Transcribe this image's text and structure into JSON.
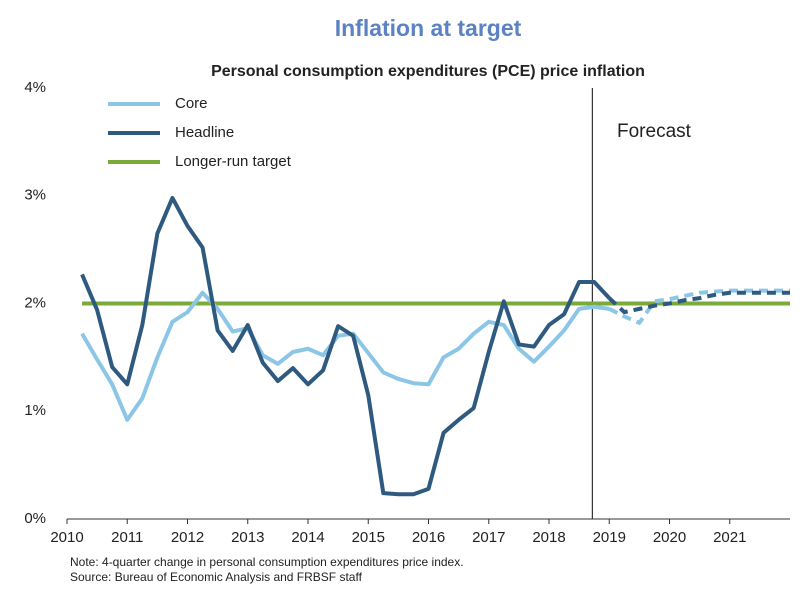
{
  "chart_data": {
    "type": "line",
    "title": "Inflation at target",
    "subtitle": "Personal consumption expenditures (PCE) price inflation",
    "annotation": "Forecast",
    "forecast_x": 2018.72,
    "dashed_from": 2019,
    "notes": [
      "Note: 4-quarter change in personal consumption expenditures price index.",
      "Source: Bureau of Economic Analysis and FRBSF staff"
    ],
    "x": [
      2010.25,
      2010.5,
      2010.75,
      2011,
      2011.25,
      2011.5,
      2011.75,
      2012,
      2012.25,
      2012.5,
      2012.75,
      2013,
      2013.25,
      2013.5,
      2013.75,
      2014,
      2014.25,
      2014.5,
      2014.75,
      2015,
      2015.25,
      2015.5,
      2015.75,
      2016,
      2016.25,
      2016.5,
      2016.75,
      2017,
      2017.25,
      2017.5,
      2017.75,
      2018,
      2018.25,
      2018.5,
      2018.75,
      2019,
      2019.25,
      2019.5,
      2019.75,
      2020,
      2020.25,
      2020.5,
      2020.75,
      2021,
      2021.25,
      2021.5,
      2021.75,
      2022
    ],
    "xlim": [
      2010,
      2022
    ],
    "xticks": [
      2010,
      2011,
      2012,
      2013,
      2014,
      2015,
      2016,
      2017,
      2018,
      2019,
      2020,
      2021
    ],
    "ylim": [
      0,
      4
    ],
    "yticks": [
      {
        "value": 0,
        "label": "0%"
      },
      {
        "value": 1,
        "label": "1%"
      },
      {
        "value": 2,
        "label": "2%"
      },
      {
        "value": 3,
        "label": "3%"
      },
      {
        "value": 4,
        "label": "4%"
      }
    ],
    "series": [
      {
        "name": "Core",
        "color": "#8cc6e6",
        "values": [
          1.72,
          1.48,
          1.25,
          0.92,
          1.12,
          1.5,
          1.83,
          1.92,
          2.1,
          1.95,
          1.74,
          1.77,
          1.52,
          1.44,
          1.55,
          1.58,
          1.52,
          1.7,
          1.72,
          1.54,
          1.36,
          1.3,
          1.26,
          1.25,
          1.5,
          1.58,
          1.72,
          1.83,
          1.8,
          1.58,
          1.46,
          1.6,
          1.75,
          1.95,
          1.97,
          1.95,
          1.88,
          1.82,
          2.02,
          2.04,
          2.07,
          2.1,
          2.11,
          2.12,
          2.12,
          2.12,
          2.12,
          2.12
        ]
      },
      {
        "name": "Headline",
        "color": "#2f5a80",
        "values": [
          2.27,
          1.94,
          1.41,
          1.25,
          1.8,
          2.65,
          2.98,
          2.72,
          2.52,
          1.75,
          1.56,
          1.8,
          1.45,
          1.28,
          1.4,
          1.25,
          1.38,
          1.79,
          1.7,
          1.15,
          0.24,
          0.23,
          0.23,
          0.28,
          0.8,
          0.92,
          1.03,
          1.55,
          2.02,
          1.62,
          1.6,
          1.8,
          1.9,
          2.2,
          2.2,
          2.05,
          1.92,
          1.95,
          1.98,
          2.0,
          2.03,
          2.05,
          2.08,
          2.1,
          2.1,
          2.1,
          2.1,
          2.1
        ]
      },
      {
        "name": "Longer-run target",
        "color": "#7aab3a",
        "dashed": false,
        "values": [
          2,
          2,
          2,
          2,
          2,
          2,
          2,
          2,
          2,
          2,
          2,
          2,
          2,
          2,
          2,
          2,
          2,
          2,
          2,
          2,
          2,
          2,
          2,
          2,
          2,
          2,
          2,
          2,
          2,
          2,
          2,
          2,
          2,
          2,
          2,
          2,
          2,
          2,
          2,
          2,
          2,
          2,
          2,
          2,
          2,
          2,
          2,
          2
        ]
      }
    ]
  }
}
